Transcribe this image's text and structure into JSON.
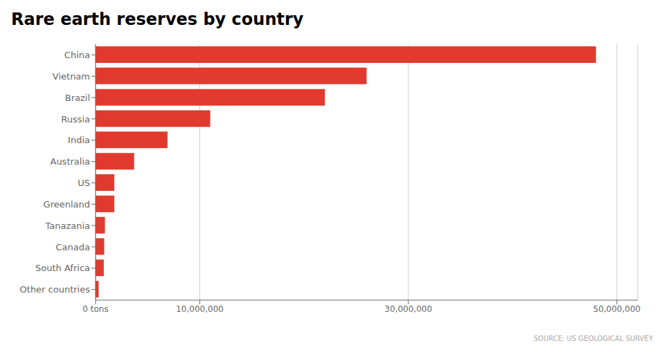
{
  "chart_data": {
    "type": "bar",
    "orientation": "horizontal",
    "title": "Rare earth reserves by country",
    "annotation": "SOURCE: US GEOLOGICAL SURVEY",
    "categories": [
      "China",
      "Vietnam",
      "Brazil",
      "Russia",
      "India",
      "Australia",
      "US",
      "Greenland",
      "Tanazania",
      "Canada",
      "South Africa",
      "Other countries"
    ],
    "values": [
      48000000,
      26000000,
      22000000,
      11000000,
      6900000,
      3700000,
      1800000,
      1800000,
      900000,
      830000,
      790000,
      300000
    ],
    "color": "#e03b2e",
    "xlim": [
      0,
      52000000
    ],
    "xticks": [
      {
        "value": 0,
        "label": "0 tons"
      },
      {
        "value": 10000000,
        "label": "10,000,000"
      },
      {
        "value": 30000000,
        "label": "30,000,000"
      },
      {
        "value": 50000000,
        "label": "50,000,000"
      }
    ],
    "grid": true
  }
}
